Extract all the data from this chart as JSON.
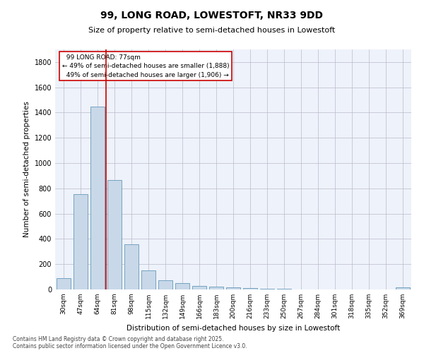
{
  "title": "99, LONG ROAD, LOWESTOFT, NR33 9DD",
  "subtitle": "Size of property relative to semi-detached houses in Lowestoft",
  "xlabel": "Distribution of semi-detached houses by size in Lowestoft",
  "ylabel": "Number of semi-detached properties",
  "categories": [
    "30sqm",
    "47sqm",
    "64sqm",
    "81sqm",
    "98sqm",
    "115sqm",
    "132sqm",
    "149sqm",
    "166sqm",
    "183sqm",
    "200sqm",
    "216sqm",
    "233sqm",
    "250sqm",
    "267sqm",
    "284sqm",
    "301sqm",
    "318sqm",
    "335sqm",
    "352sqm",
    "369sqm"
  ],
  "values": [
    90,
    755,
    1450,
    865,
    355,
    150,
    70,
    50,
    30,
    22,
    15,
    10,
    8,
    5,
    0,
    0,
    0,
    0,
    0,
    0,
    15
  ],
  "bar_color": "#c8d8e8",
  "bar_edge_color": "#6699bb",
  "red_line_x": 2.5,
  "red_line_label": "99 LONG ROAD: 77sqm",
  "pct_smaller": "49% of semi-detached houses are smaller (1,888)",
  "pct_larger": "49% of semi-detached houses are larger (1,906)",
  "annotation_box_color": "#cc0000",
  "background_color": "#eef2fa",
  "grid_color": "#bbbbcc",
  "ylim": [
    0,
    1900
  ],
  "yticks": [
    0,
    200,
    400,
    600,
    800,
    1000,
    1200,
    1400,
    1600,
    1800
  ],
  "footer": "Contains HM Land Registry data © Crown copyright and database right 2025.\nContains public sector information licensed under the Open Government Licence v3.0."
}
